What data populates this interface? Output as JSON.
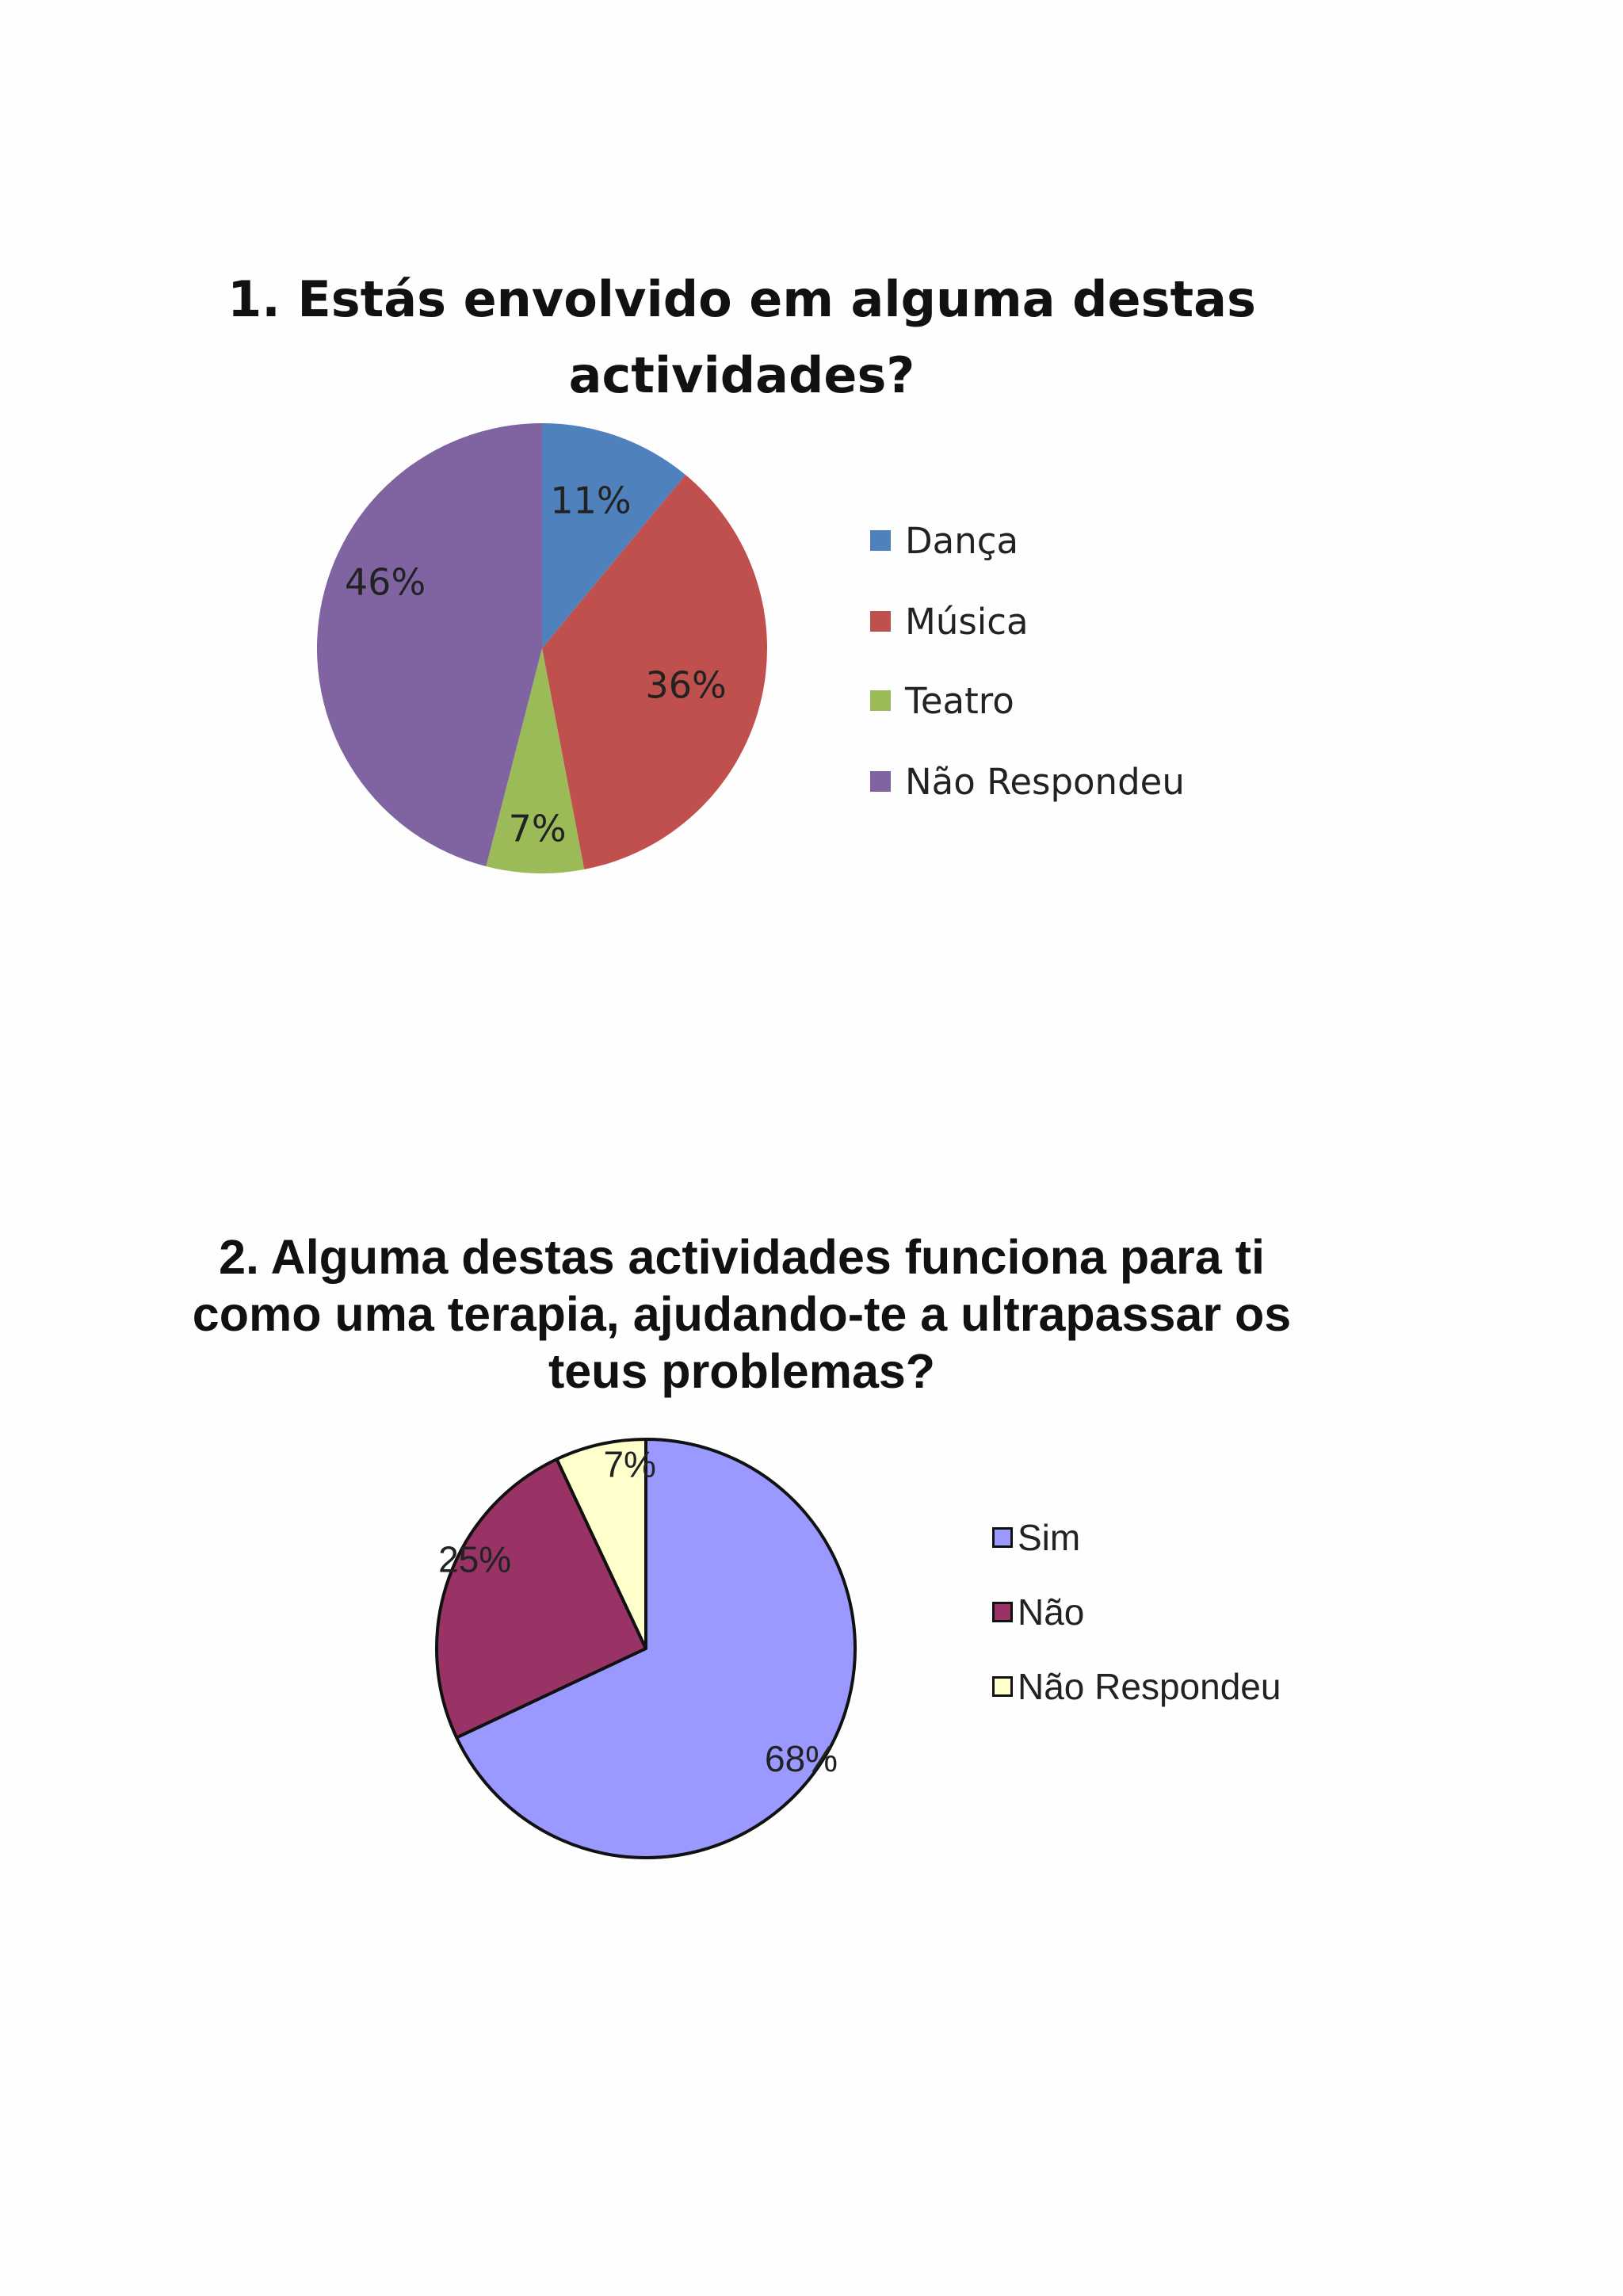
{
  "chart_data": [
    {
      "type": "pie",
      "title": "1. Estás envolvido em alguma destas actividades?",
      "categories": [
        "Dança",
        "Música",
        "Teatro",
        "Não Respondeu"
      ],
      "values": [
        11,
        36,
        7,
        46
      ],
      "data_labels": [
        "11%",
        "36%",
        "7%",
        "46%"
      ],
      "colors": [
        "#4f81bd",
        "#c0504d",
        "#9bbb59",
        "#8064a2"
      ],
      "legend_position": "right",
      "slice_border": "none"
    },
    {
      "type": "pie",
      "title": "2. Alguma destas actividades funciona para ti como uma terapia, ajudando-te a ultrapassar os teus problemas?",
      "categories": [
        "Sim",
        "Não",
        "Não Respondeu"
      ],
      "values": [
        68,
        25,
        7
      ],
      "data_labels": [
        "68%",
        "25%",
        "7%"
      ],
      "colors": [
        "#9999ff",
        "#993366",
        "#ffffcc"
      ],
      "legend_position": "right",
      "slice_border": "#111111"
    }
  ]
}
